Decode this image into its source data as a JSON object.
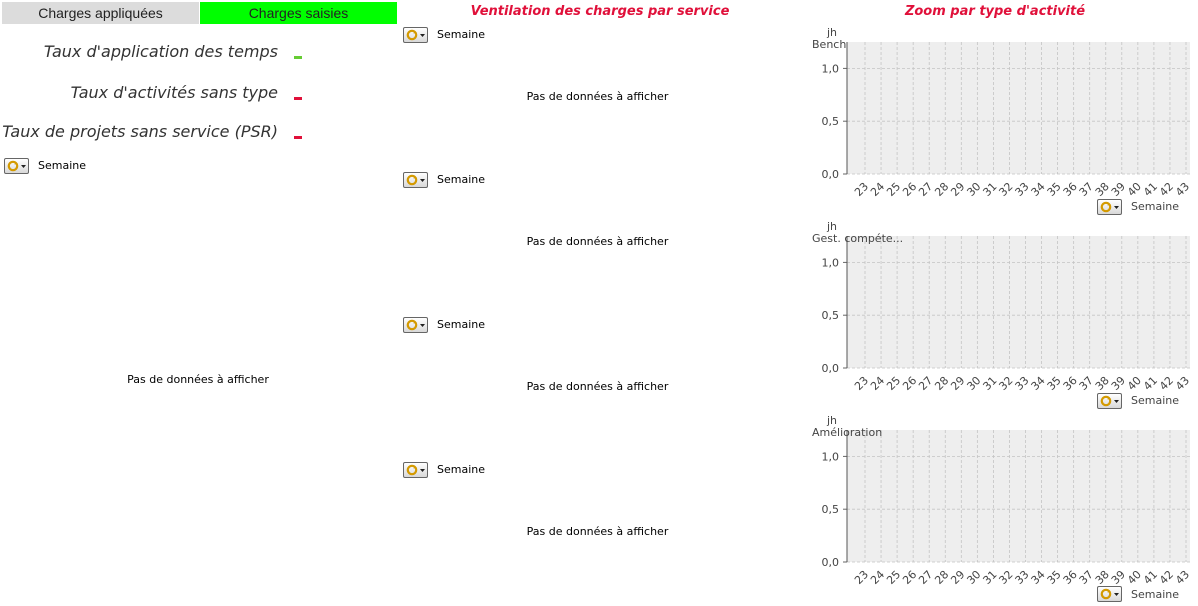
{
  "colors": {
    "green": "#00ff00",
    "red": "#e0103a",
    "kpi_green": "#66cc33",
    "kpi_red": "#e0103a"
  },
  "tabs": [
    {
      "label": "Charges appliquées",
      "active": false
    },
    {
      "label": "Charges saisies",
      "active": true
    }
  ],
  "kpis": [
    {
      "label": "Taux d'application des temps",
      "status": "green"
    },
    {
      "label": "Taux d'activités sans type",
      "status": "red"
    },
    {
      "label": "Taux de projets sans service (PSR)",
      "status": "red"
    }
  ],
  "left_panel": {
    "dropdown_label": "Semaine",
    "nodata": "Pas de données à afficher"
  },
  "middle": {
    "title": "Ventilation des charges par service",
    "blocks": [
      {
        "dropdown_label": "Semaine",
        "nodata": "Pas de données à afficher"
      },
      {
        "dropdown_label": "Semaine",
        "nodata": "Pas de données à afficher"
      },
      {
        "dropdown_label": "Semaine",
        "nodata": "Pas de données à afficher"
      },
      {
        "dropdown_label": "Semaine",
        "nodata": "Pas de données à afficher"
      }
    ]
  },
  "right": {
    "title": "Zoom par type d'activité"
  },
  "chart_data": [
    {
      "type": "line",
      "title": "Bench",
      "ylabel": "jh",
      "xlabel": "Semaine",
      "x": [
        "23",
        "24",
        "25",
        "26",
        "27",
        "28",
        "29",
        "30",
        "31",
        "32",
        "33",
        "34",
        "35",
        "36",
        "37",
        "38",
        "39",
        "40",
        "41",
        "42",
        "43"
      ],
      "yticks": [
        "0,0",
        "0,5",
        "1,0"
      ],
      "ylim": [
        0,
        1.25
      ],
      "grid": true,
      "series": []
    },
    {
      "type": "line",
      "title": "Gest. compéte...",
      "ylabel": "jh",
      "xlabel": "Semaine",
      "x": [
        "23",
        "24",
        "25",
        "26",
        "27",
        "28",
        "29",
        "30",
        "31",
        "32",
        "33",
        "34",
        "35",
        "36",
        "37",
        "38",
        "39",
        "40",
        "41",
        "42",
        "43"
      ],
      "yticks": [
        "0,0",
        "0,5",
        "1,0"
      ],
      "ylim": [
        0,
        1.25
      ],
      "grid": true,
      "series": []
    },
    {
      "type": "line",
      "title": "Amélioration",
      "ylabel": "jh",
      "xlabel": "Semaine",
      "x": [
        "23",
        "24",
        "25",
        "26",
        "27",
        "28",
        "29",
        "30",
        "31",
        "32",
        "33",
        "34",
        "35",
        "36",
        "37",
        "38",
        "39",
        "40",
        "41",
        "42",
        "43"
      ],
      "yticks": [
        "0,0",
        "0,5",
        "1,0"
      ],
      "ylim": [
        0,
        1.25
      ],
      "grid": true,
      "series": []
    }
  ]
}
